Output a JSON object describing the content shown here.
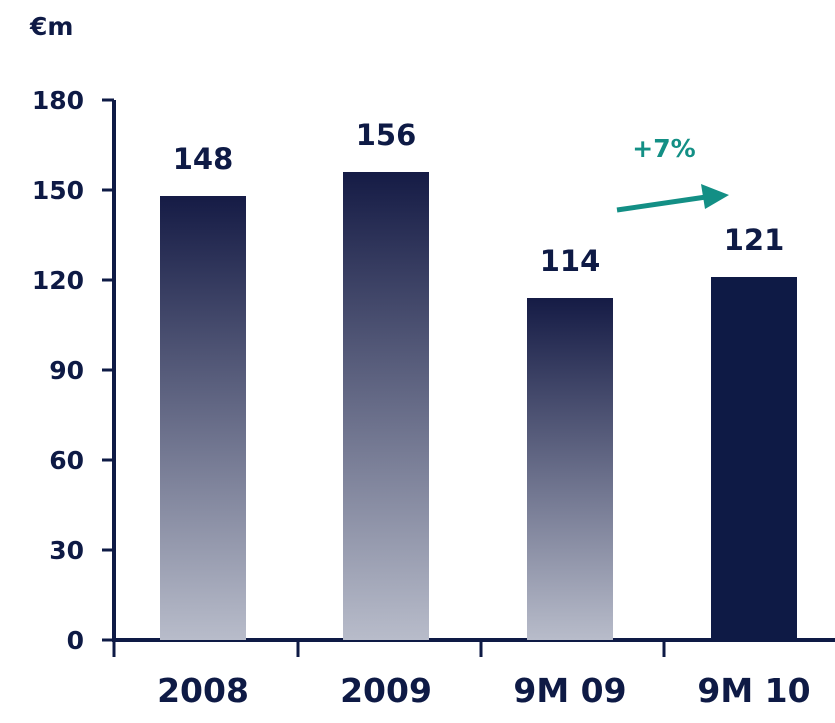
{
  "unit_label": "€m",
  "annotation": {
    "text": "+7%",
    "color": "#138f85"
  },
  "colors": {
    "axis": "#0e1a45",
    "text": "#0e1a45",
    "bar_gradient_top": "#151b45",
    "bar_gradient_bottom": "#b8bcca",
    "bar_solid": "#0e1a45"
  },
  "chart_data": {
    "type": "bar",
    "categories": [
      "2008",
      "2009",
      "9M 09",
      "9M 10"
    ],
    "values": [
      148,
      156,
      114,
      121
    ],
    "data_labels": [
      "148",
      "156",
      "114",
      "121"
    ],
    "bar_styles": [
      "gradient",
      "gradient",
      "gradient",
      "solid"
    ],
    "ylim": [
      0,
      180
    ],
    "yticks": [
      0,
      30,
      60,
      90,
      120,
      150,
      180
    ],
    "ylabel": "€m",
    "xlabel": "",
    "title": "",
    "grid": false,
    "annotation": {
      "text": "+7%",
      "from": "9M 09",
      "to": "9M 10"
    }
  }
}
